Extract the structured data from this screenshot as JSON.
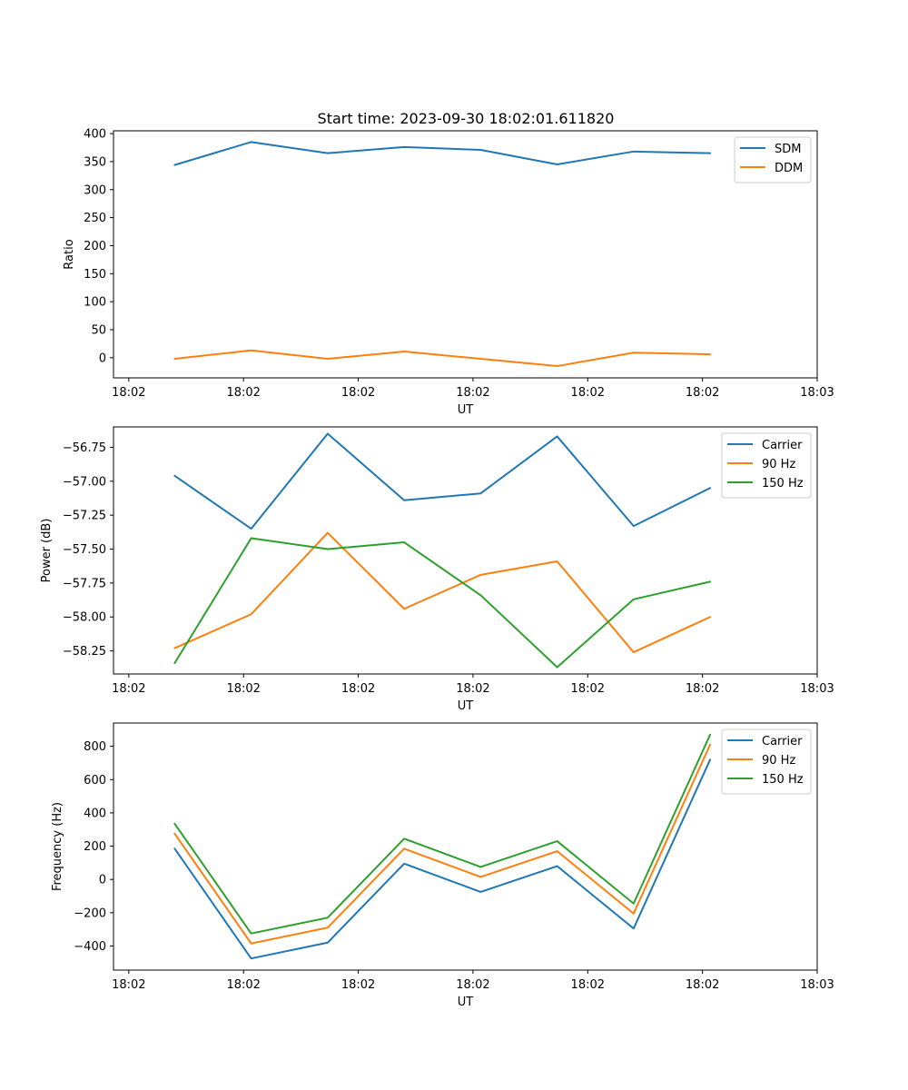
{
  "title": "Start time: 2023-09-30 18:02:01.611820",
  "chart_data": [
    {
      "type": "line",
      "title": "Start time: 2023-09-30 18:02:01.611820",
      "xlabel": "UT",
      "ylabel": "Ratio",
      "x": [
        1,
        2,
        3,
        4,
        5,
        6,
        7,
        8
      ],
      "xlim": [
        0.2,
        9.4
      ],
      "x_ticks": [
        0.4,
        1.9,
        3.4,
        4.9,
        6.4,
        7.9,
        9.4
      ],
      "x_tick_labels": [
        "18:02",
        "18:02",
        "18:02",
        "18:02",
        "18:02",
        "18:02",
        "18:03"
      ],
      "ylim": [
        -36,
        405
      ],
      "y_ticks": [
        0,
        50,
        100,
        150,
        200,
        250,
        300,
        350,
        400
      ],
      "y_tick_labels": [
        "0",
        "50",
        "100",
        "150",
        "200",
        "250",
        "300",
        "350",
        "400"
      ],
      "legend_position": "top-right",
      "series": [
        {
          "name": "SDM",
          "color": "#1f77b4",
          "values": [
            344,
            385,
            365,
            376,
            371,
            345,
            368,
            365
          ]
        },
        {
          "name": "DDM",
          "color": "#ff7f0e",
          "values": [
            -2,
            13,
            -2,
            11,
            -2,
            -15,
            9,
            6
          ]
        }
      ]
    },
    {
      "type": "line",
      "title": "",
      "xlabel": "UT",
      "ylabel": "Power (dB)",
      "x": [
        1,
        2,
        3,
        4,
        5,
        6,
        7,
        8
      ],
      "xlim": [
        0.2,
        9.4
      ],
      "x_ticks": [
        0.4,
        1.9,
        3.4,
        4.9,
        6.4,
        7.9,
        9.4
      ],
      "x_tick_labels": [
        "18:02",
        "18:02",
        "18:02",
        "18:02",
        "18:02",
        "18:02",
        "18:03"
      ],
      "ylim": [
        -58.42,
        -56.6
      ],
      "y_ticks": [
        -56.75,
        -57.0,
        -57.25,
        -57.5,
        -57.75,
        -58.0,
        -58.25
      ],
      "y_tick_labels": [
        "−56.75",
        "−57.00",
        "−57.25",
        "−57.50",
        "−57.75",
        "−58.00",
        "−58.25"
      ],
      "legend_position": "top-right",
      "series": [
        {
          "name": "Carrier",
          "color": "#1f77b4",
          "values": [
            -56.96,
            -57.35,
            -56.65,
            -57.14,
            -57.09,
            -56.67,
            -57.33,
            -57.05
          ]
        },
        {
          "name": "90 Hz",
          "color": "#ff7f0e",
          "values": [
            -58.23,
            -57.98,
            -57.38,
            -57.94,
            -57.69,
            -57.59,
            -58.26,
            -58.0
          ]
        },
        {
          "name": "150 Hz",
          "color": "#2ca02c",
          "values": [
            -58.34,
            -57.42,
            -57.5,
            -57.45,
            -57.84,
            -58.37,
            -57.87,
            -57.74
          ]
        }
      ]
    },
    {
      "type": "line",
      "title": "",
      "xlabel": "UT",
      "ylabel": "Frequency (Hz)",
      "x": [
        1,
        2,
        3,
        4,
        5,
        6,
        7,
        8
      ],
      "xlim": [
        0.2,
        9.4
      ],
      "x_ticks": [
        0.4,
        1.9,
        3.4,
        4.9,
        6.4,
        7.9,
        9.4
      ],
      "x_tick_labels": [
        "18:02",
        "18:02",
        "18:02",
        "18:02",
        "18:02",
        "18:02",
        "18:03"
      ],
      "ylim": [
        -545,
        940
      ],
      "y_ticks": [
        -400,
        -200,
        0,
        200,
        400,
        600,
        800
      ],
      "y_tick_labels": [
        "−400",
        "−200",
        "0",
        "200",
        "400",
        "600",
        "800"
      ],
      "legend_position": "top-right",
      "series": [
        {
          "name": "Carrier",
          "color": "#1f77b4",
          "values": [
            185,
            -475,
            -380,
            95,
            -75,
            80,
            -295,
            720
          ]
        },
        {
          "name": "90 Hz",
          "color": "#ff7f0e",
          "values": [
            275,
            -385,
            -290,
            185,
            15,
            170,
            -205,
            810
          ]
        },
        {
          "name": "150 Hz",
          "color": "#2ca02c",
          "values": [
            335,
            -325,
            -230,
            245,
            75,
            230,
            -145,
            870
          ]
        }
      ]
    }
  ]
}
